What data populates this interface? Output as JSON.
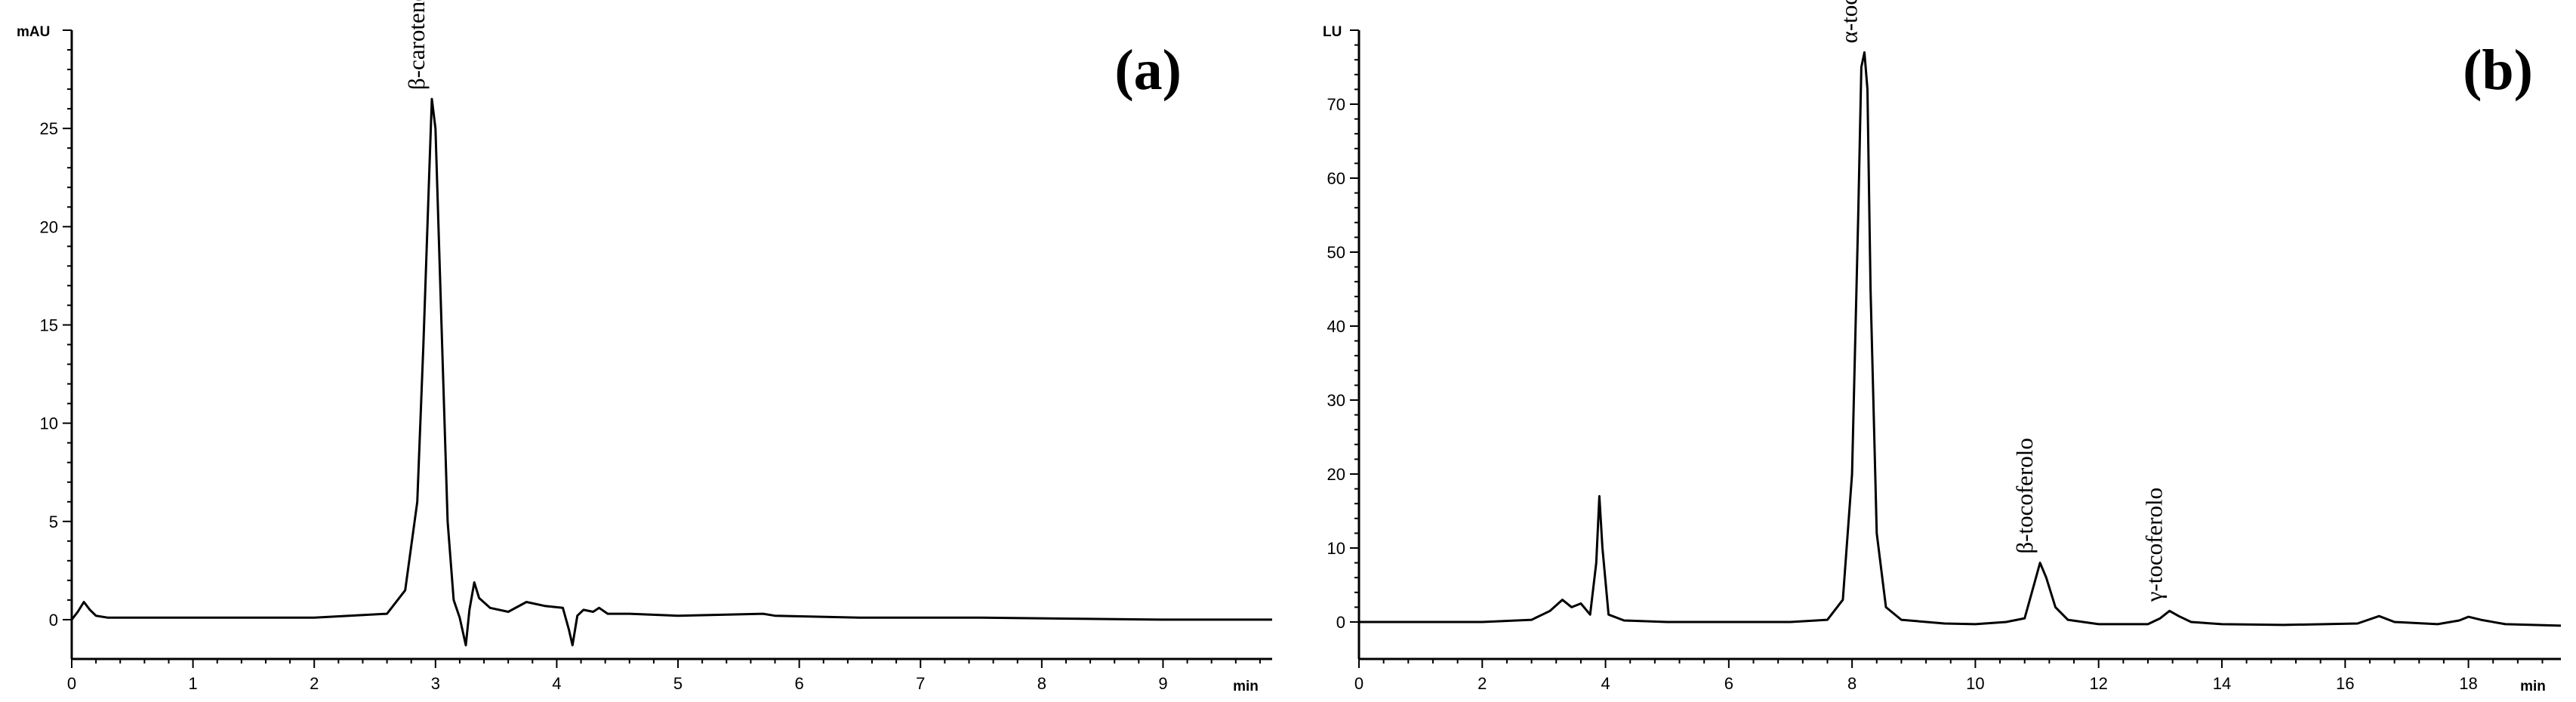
{
  "chart_data": [
    {
      "type": "line",
      "panel_label": "(a)",
      "ylabel": "mAU",
      "xlabel": "min",
      "xlim": [
        0,
        9.9
      ],
      "ylim": [
        -2,
        30
      ],
      "xticks": [
        0,
        1,
        2,
        3,
        4,
        5,
        6,
        7,
        8,
        9
      ],
      "yticks": [
        0,
        5,
        10,
        15,
        20,
        25
      ],
      "grid": false,
      "annotations": [
        {
          "text": "β-carotene",
          "x": 2.97,
          "y": 26.5
        }
      ],
      "series": [
        {
          "x": [
            0.0,
            0.05,
            0.1,
            0.15,
            0.2,
            0.3,
            0.5,
            1.0,
            2.0,
            2.6,
            2.75,
            2.85,
            2.9,
            2.95,
            2.97,
            3.0,
            3.05,
            3.1,
            3.15,
            3.2,
            3.25,
            3.28,
            3.32,
            3.36,
            3.45,
            3.6,
            3.75,
            3.9,
            4.05,
            4.1,
            4.13,
            4.17,
            4.22,
            4.3,
            4.35,
            4.42,
            4.6,
            5.0,
            5.7,
            5.8,
            6.5,
            7.5,
            9.0,
            9.9
          ],
          "y": [
            0.0,
            0.4,
            0.9,
            0.5,
            0.2,
            0.1,
            0.1,
            0.1,
            0.1,
            0.3,
            1.5,
            6.0,
            14.0,
            23.0,
            26.5,
            25.0,
            15.0,
            5.0,
            1.0,
            0.1,
            -1.3,
            0.5,
            1.9,
            1.1,
            0.6,
            0.4,
            0.9,
            0.7,
            0.6,
            -0.5,
            -1.3,
            0.2,
            0.5,
            0.4,
            0.6,
            0.3,
            0.3,
            0.2,
            0.3,
            0.2,
            0.1,
            0.1,
            0.0,
            0.0
          ]
        }
      ]
    },
    {
      "type": "line",
      "panel_label": "(b)",
      "ylabel": "LU",
      "xlabel": "min",
      "xlim": [
        0,
        19.5
      ],
      "ylim": [
        -5,
        80
      ],
      "xticks": [
        0,
        2,
        4,
        6,
        8,
        10,
        12,
        14,
        16,
        18
      ],
      "yticks": [
        0,
        10,
        20,
        30,
        40,
        50,
        60,
        70
      ],
      "grid": false,
      "annotations": [
        {
          "text": "α-tocoferolo",
          "x": 8.2,
          "y": 77
        },
        {
          "text": "β-tocoferolo",
          "x": 11.05,
          "y": 8
        },
        {
          "text": "γ-tocoferolo",
          "x": 13.15,
          "y": 1.5
        }
      ],
      "series": [
        {
          "x": [
            0.0,
            2.0,
            2.8,
            3.1,
            3.3,
            3.45,
            3.6,
            3.75,
            3.85,
            3.9,
            3.95,
            4.05,
            4.3,
            5.0,
            6.0,
            7.0,
            7.6,
            7.85,
            8.0,
            8.1,
            8.15,
            8.2,
            8.25,
            8.3,
            8.4,
            8.55,
            8.8,
            9.5,
            10.0,
            10.5,
            10.8,
            10.95,
            11.05,
            11.15,
            11.3,
            11.5,
            12.0,
            12.8,
            13.0,
            13.15,
            13.3,
            13.5,
            14.0,
            15.0,
            16.2,
            16.55,
            16.8,
            17.5,
            17.85,
            18.0,
            18.2,
            18.6,
            19.5
          ],
          "y": [
            0.0,
            0.0,
            0.3,
            1.5,
            3.0,
            2.0,
            2.5,
            1.0,
            8.0,
            17.0,
            10.0,
            1.0,
            0.2,
            0.0,
            0.0,
            0.0,
            0.3,
            3.0,
            20.0,
            55.0,
            75.0,
            77.0,
            72.0,
            45.0,
            12.0,
            2.0,
            0.3,
            -0.2,
            -0.3,
            0.0,
            0.5,
            5.0,
            8.0,
            6.0,
            2.0,
            0.3,
            -0.3,
            -0.3,
            0.5,
            1.5,
            0.8,
            0.0,
            -0.3,
            -0.4,
            -0.2,
            0.8,
            0.0,
            -0.3,
            0.2,
            0.7,
            0.3,
            -0.3,
            -0.5
          ]
        }
      ]
    }
  ]
}
